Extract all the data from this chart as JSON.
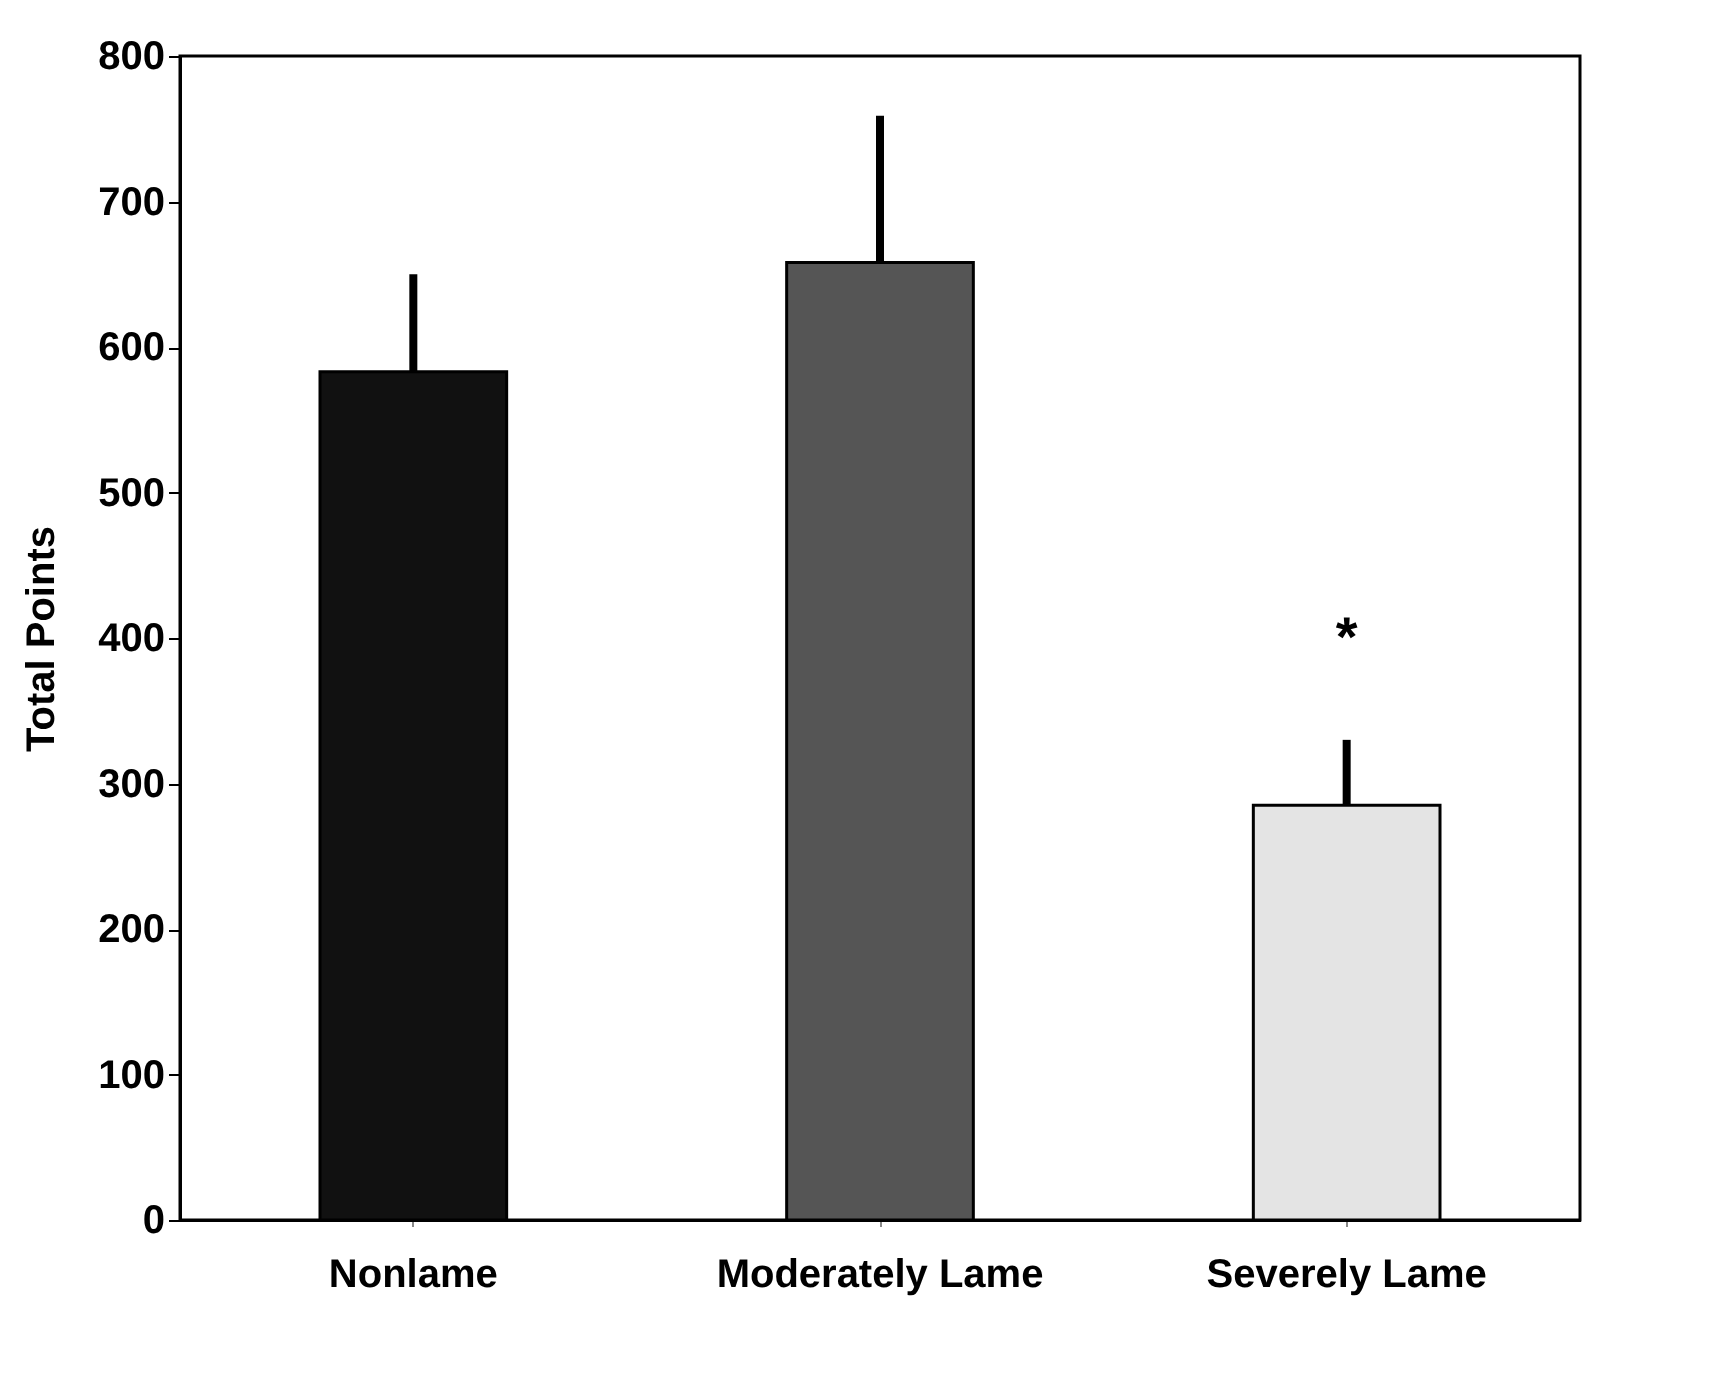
{
  "chart_data": {
    "type": "bar",
    "ylabel": "Total Points",
    "categories": [
      "Nonlame",
      "Moderately Lame",
      "Severely Lame"
    ],
    "values": [
      583,
      658,
      285
    ],
    "colors": [
      "#111111",
      "#555555",
      "#e4e4e4"
    ],
    "errors": [
      [
        583,
        650
      ],
      [
        658,
        759
      ],
      [
        285,
        330
      ]
    ],
    "ylim": [
      0,
      800
    ],
    "yticks": [
      0,
      100,
      200,
      300,
      400,
      500,
      600,
      700,
      800
    ],
    "annotations": [
      "*"
    ]
  }
}
